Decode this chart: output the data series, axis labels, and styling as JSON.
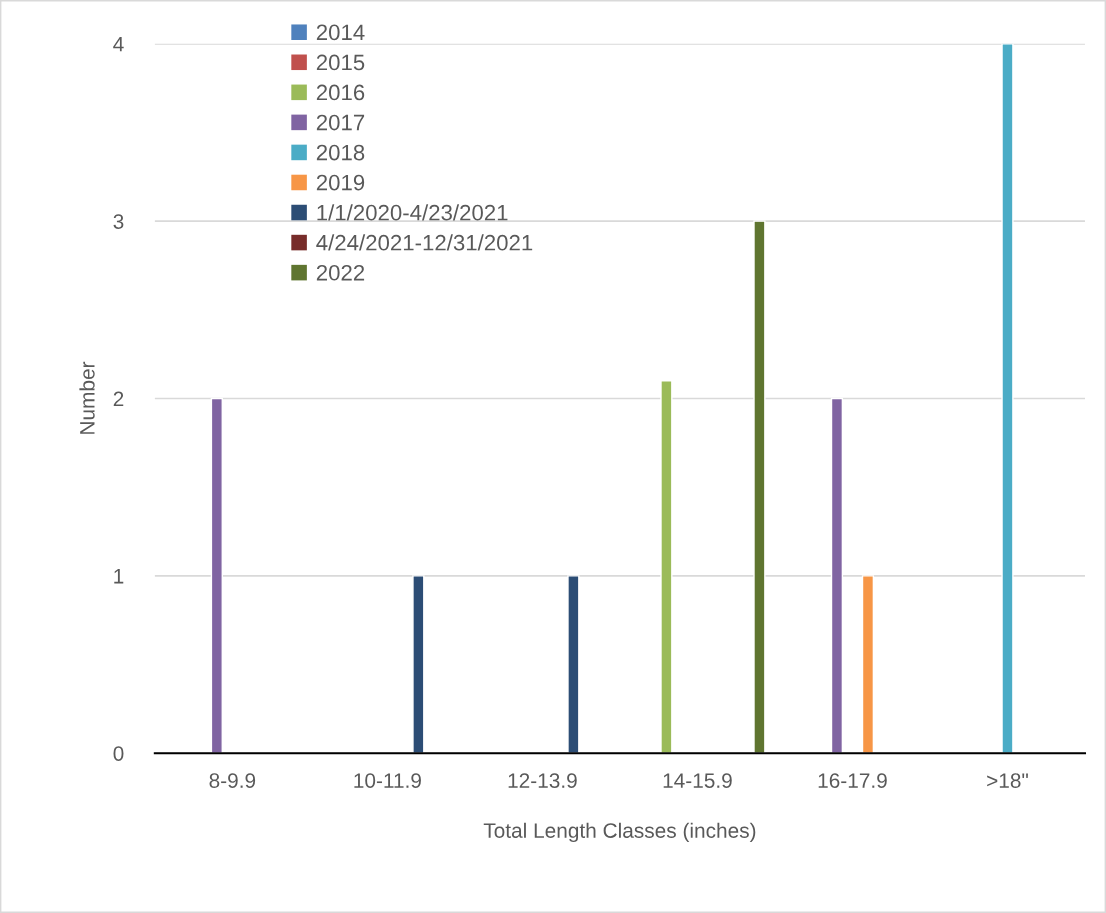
{
  "chart_data": {
    "type": "bar",
    "xlabel": "Total Length Classes (inches)",
    "ylabel": "Number",
    "categories": [
      "8-9.9",
      "10-11.9",
      "12-13.9",
      "14-15.9",
      "16-17.9",
      ">18\""
    ],
    "series": [
      {
        "name": "2014",
        "color": "#4f81bd",
        "values": [
          null,
          null,
          null,
          null,
          null,
          null
        ]
      },
      {
        "name": "2015",
        "color": "#c0504d",
        "values": [
          null,
          null,
          null,
          null,
          null,
          null
        ]
      },
      {
        "name": "2016",
        "color": "#9bbb59",
        "values": [
          null,
          null,
          null,
          2.1,
          null,
          null
        ]
      },
      {
        "name": "2017",
        "color": "#8064a2",
        "values": [
          2,
          null,
          null,
          null,
          2,
          null
        ]
      },
      {
        "name": "2018",
        "color": "#4bacc6",
        "values": [
          null,
          null,
          null,
          null,
          null,
          4
        ]
      },
      {
        "name": "2019",
        "color": "#f79646",
        "values": [
          null,
          null,
          null,
          null,
          1,
          null
        ]
      },
      {
        "name": "1/1/2020-4/23/2021",
        "color": "#2c4d75",
        "values": [
          null,
          1,
          1,
          null,
          null,
          null
        ]
      },
      {
        "name": "4/24/2021-12/31/2021",
        "color": "#772c2a",
        "values": [
          null,
          null,
          null,
          null,
          null,
          null
        ]
      },
      {
        "name": "2022",
        "color": "#5f7530",
        "values": [
          null,
          null,
          null,
          3,
          null,
          null
        ]
      }
    ],
    "ylim": [
      0,
      4
    ],
    "yticks": [
      0,
      1,
      2,
      3,
      4
    ],
    "grid": "y",
    "legend": "top left"
  }
}
